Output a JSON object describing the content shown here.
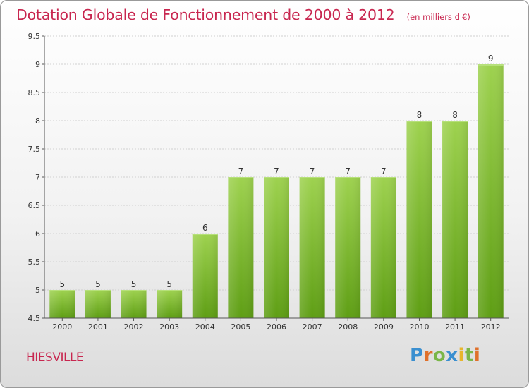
{
  "header": {
    "title": "Dotation Globale de Fonctionnement de 2000 à 2012",
    "subtitle": "(en milliers d'€)"
  },
  "commune": "HIESVILLE",
  "logo": {
    "text": "Proxiti",
    "colors": [
      "#3a8fd0",
      "#e0702a",
      "#7ab648",
      "#3a8fd0",
      "#e8b52c",
      "#7ab648",
      "#e0702a"
    ]
  },
  "chart_data": {
    "type": "bar",
    "categories": [
      "2000",
      "2001",
      "2002",
      "2003",
      "2004",
      "2005",
      "2006",
      "2007",
      "2008",
      "2009",
      "2010",
      "2011",
      "2012"
    ],
    "values": [
      5,
      5,
      5,
      5,
      6,
      7,
      7,
      7,
      7,
      7,
      8,
      8,
      9
    ],
    "ylim": [
      4.5,
      9.5
    ],
    "yticks": [
      "4.5",
      "5",
      "5.5",
      "6",
      "6.5",
      "7",
      "7.5",
      "8",
      "8.5",
      "9",
      "9.5"
    ],
    "grid": true,
    "bar_color": "#7fc22a"
  }
}
